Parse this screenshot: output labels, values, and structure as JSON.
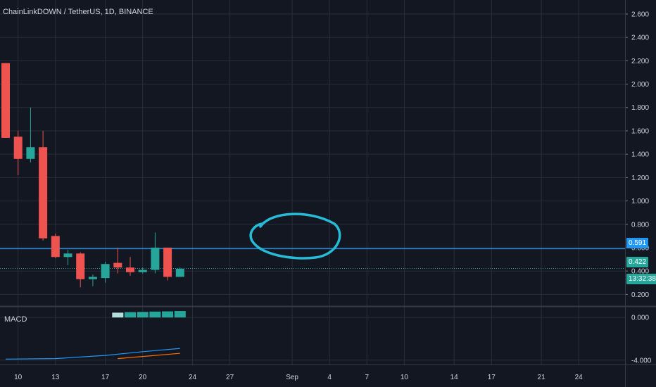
{
  "header": {
    "symbol_title": "ChainLinkDOWN / TetherUS, 1D, BINANCE"
  },
  "indicator": {
    "label": "MACD"
  },
  "price_tags": {
    "horizontal_line": "0.591",
    "last_price": "0.422",
    "countdown": "13:32:38"
  },
  "colors": {
    "background": "#131722",
    "grid": "#2a2e39",
    "up": "#26a69a",
    "down": "#ef5350",
    "horizontal_line": "#2196f3",
    "annotation": "#26bcd7",
    "macd_line": "#2196f3",
    "signal_line": "#ff6d00",
    "text": "#d1d4dc"
  },
  "chart_data": {
    "type": "candlestick",
    "title": "ChainLinkDOWN / TetherUS, 1D, BINANCE",
    "price_axis": {
      "ticks": [
        "2.600",
        "2.400",
        "2.200",
        "2.000",
        "1.800",
        "1.600",
        "1.400",
        "1.200",
        "1.000",
        "0.800",
        "0.600",
        "0.400",
        "0.200"
      ],
      "ylim": [
        0.1,
        2.72
      ]
    },
    "time_axis": {
      "labels": [
        {
          "text": "10",
          "day": 10
        },
        {
          "text": "13",
          "day": 13
        },
        {
          "text": "17",
          "day": 17
        },
        {
          "text": "20",
          "day": 20
        },
        {
          "text": "24",
          "day": 24
        },
        {
          "text": "27",
          "day": 27
        },
        {
          "text": "Sep",
          "day": 32
        },
        {
          "text": "4",
          "day": 35
        },
        {
          "text": "7",
          "day": 38
        },
        {
          "text": "10",
          "day": 41
        },
        {
          "text": "14",
          "day": 45
        },
        {
          "text": "17",
          "day": 48
        },
        {
          "text": "21",
          "day": 52
        },
        {
          "text": "24",
          "day": 55
        }
      ]
    },
    "candles": [
      {
        "day": 9,
        "open": 2.18,
        "high": 2.18,
        "low": 1.54,
        "close": 1.54
      },
      {
        "day": 10,
        "open": 1.55,
        "high": 1.6,
        "low": 1.22,
        "close": 1.36
      },
      {
        "day": 11,
        "open": 1.36,
        "high": 1.8,
        "low": 1.33,
        "close": 1.46
      },
      {
        "day": 12,
        "open": 1.46,
        "high": 1.6,
        "low": 0.66,
        "close": 0.68
      },
      {
        "day": 13,
        "open": 0.7,
        "high": 0.72,
        "low": 0.51,
        "close": 0.52
      },
      {
        "day": 14,
        "open": 0.52,
        "high": 0.58,
        "low": 0.45,
        "close": 0.55
      },
      {
        "day": 15,
        "open": 0.55,
        "high": 0.56,
        "low": 0.26,
        "close": 0.33
      },
      {
        "day": 16,
        "open": 0.33,
        "high": 0.37,
        "low": 0.27,
        "close": 0.35
      },
      {
        "day": 17,
        "open": 0.34,
        "high": 0.48,
        "low": 0.3,
        "close": 0.46
      },
      {
        "day": 18,
        "open": 0.47,
        "high": 0.6,
        "low": 0.38,
        "close": 0.43
      },
      {
        "day": 19,
        "open": 0.43,
        "high": 0.52,
        "low": 0.36,
        "close": 0.39
      },
      {
        "day": 20,
        "open": 0.39,
        "high": 0.43,
        "low": 0.38,
        "close": 0.41
      },
      {
        "day": 21,
        "open": 0.41,
        "high": 0.73,
        "low": 0.38,
        "close": 0.6
      },
      {
        "day": 22,
        "open": 0.6,
        "high": 0.6,
        "low": 0.32,
        "close": 0.35
      },
      {
        "day": 23,
        "open": 0.35,
        "high": 0.43,
        "low": 0.35,
        "close": 0.42
      }
    ],
    "horizontal_line": 0.591,
    "last_price": 0.422,
    "macd": {
      "axis_ticks": [
        "0.000",
        "-4.000"
      ],
      "ylim": [
        -4.4,
        1.0
      ],
      "histogram": [
        {
          "day": 18,
          "value": 0.45
        },
        {
          "day": 19,
          "value": 0.5
        },
        {
          "day": 20,
          "value": 0.52
        },
        {
          "day": 21,
          "value": 0.55
        },
        {
          "day": 22,
          "value": 0.57
        },
        {
          "day": 23,
          "value": 0.6
        }
      ],
      "macd_line": [
        {
          "day": 9,
          "value": -3.9
        },
        {
          "day": 13,
          "value": -3.85
        },
        {
          "day": 17,
          "value": -3.55
        },
        {
          "day": 20,
          "value": -3.2
        },
        {
          "day": 23,
          "value": -2.9
        }
      ],
      "signal_line": [
        {
          "day": 18,
          "value": -3.85
        },
        {
          "day": 20,
          "value": -3.65
        },
        {
          "day": 23,
          "value": -3.35
        }
      ]
    }
  }
}
